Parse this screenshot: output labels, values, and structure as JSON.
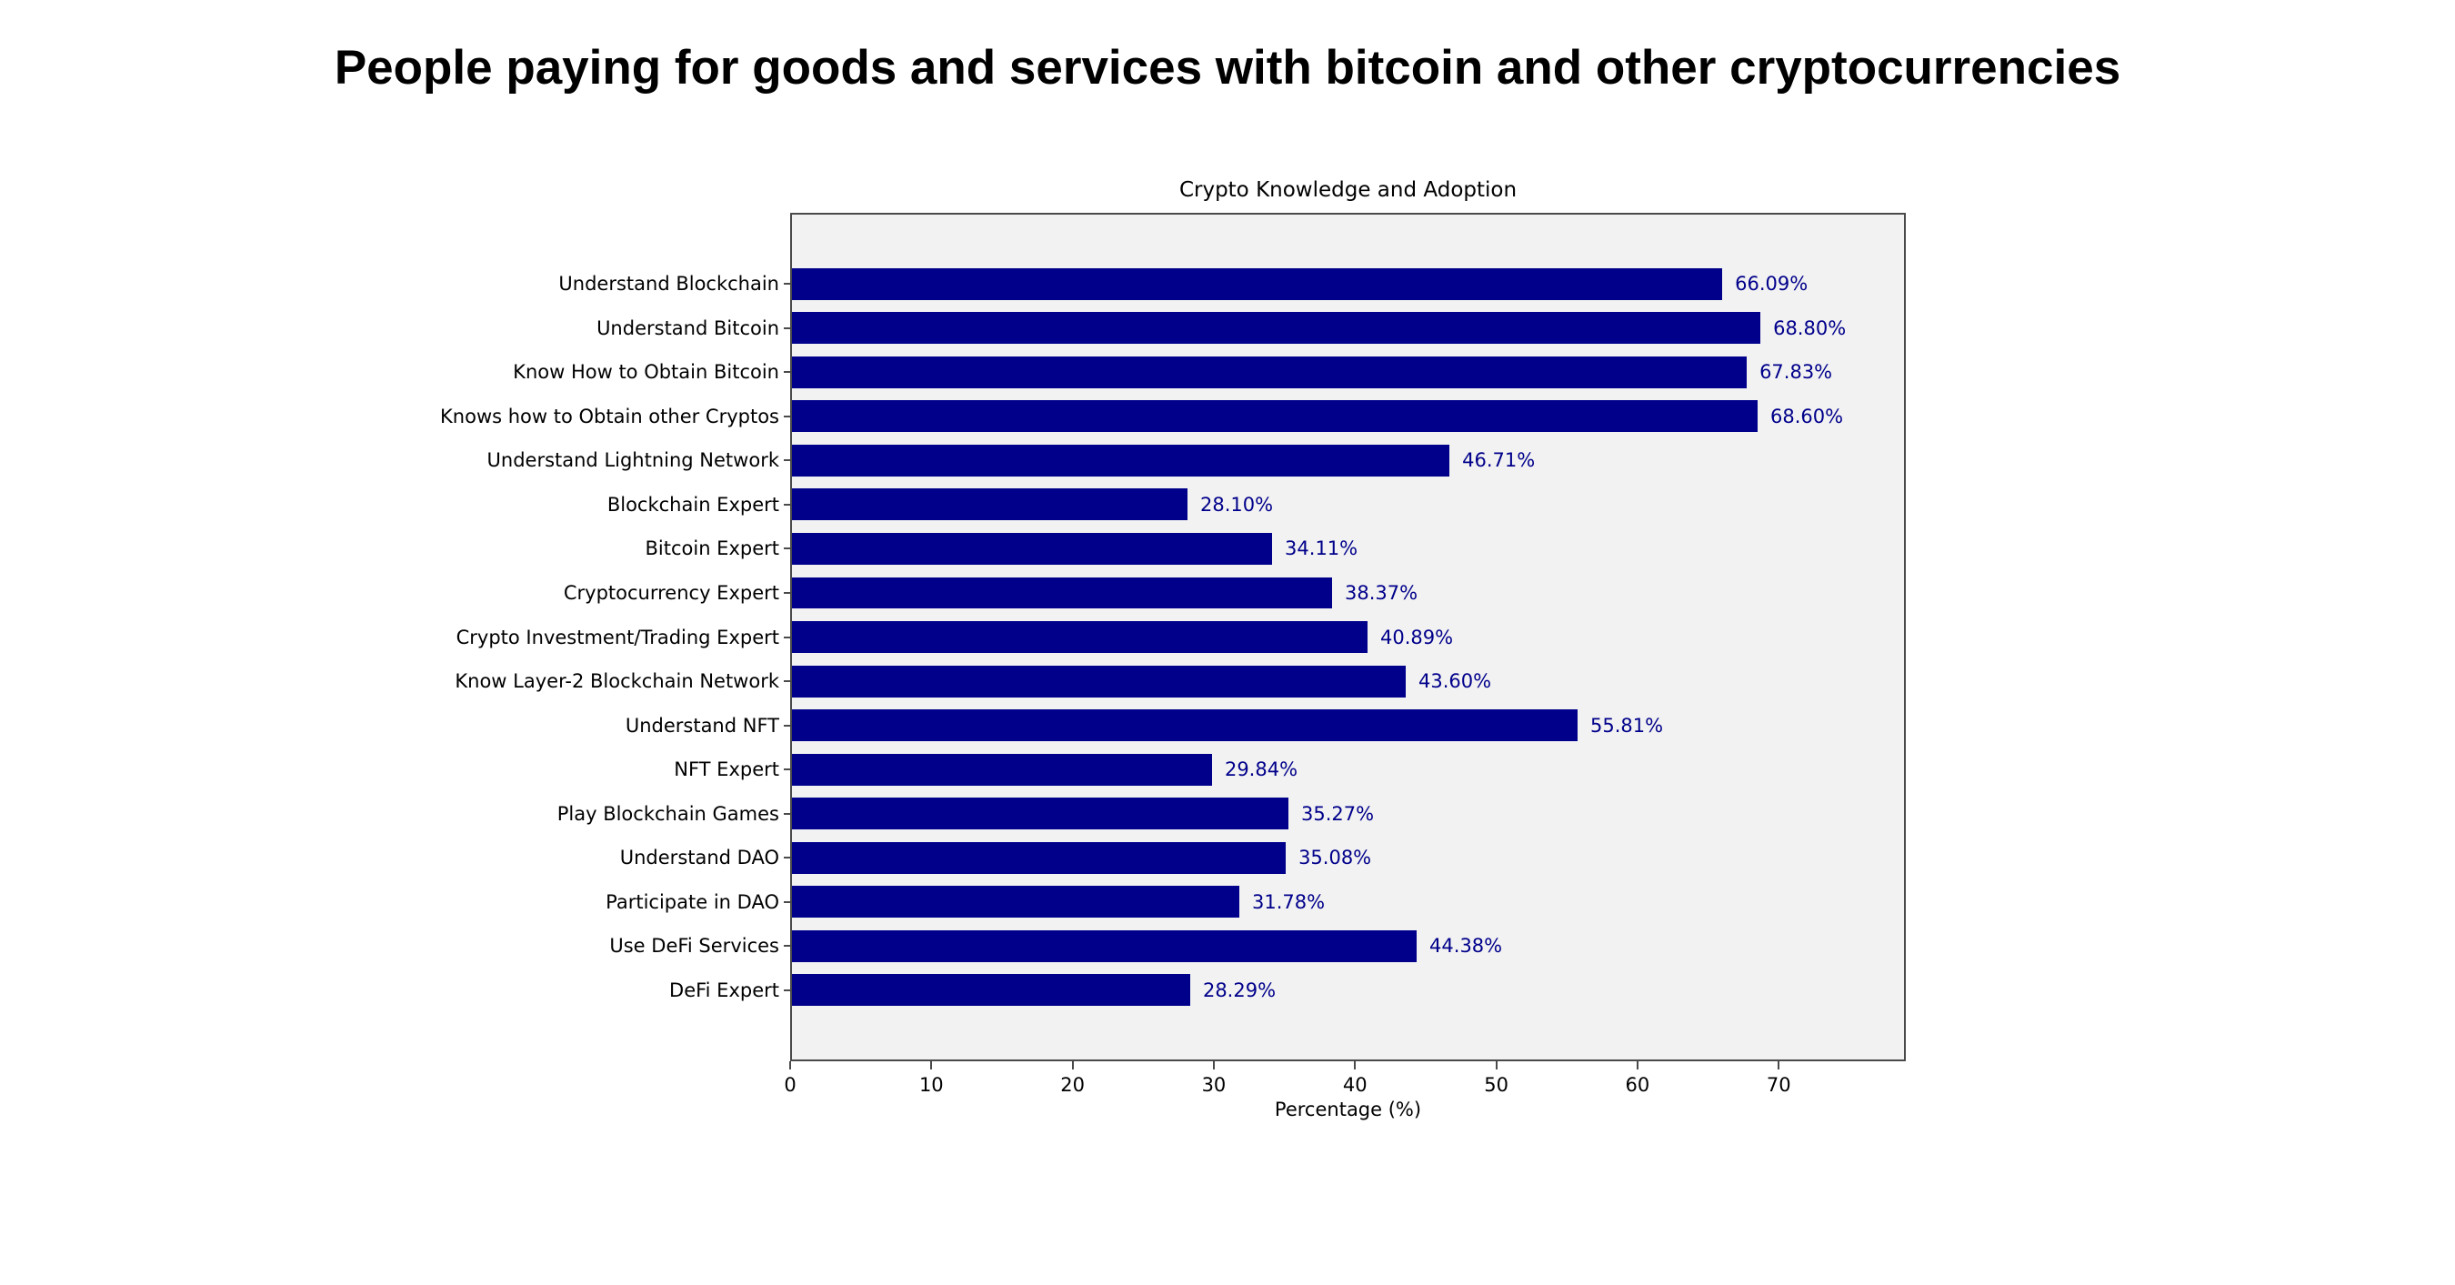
{
  "page": {
    "title": "People paying for goods and services with bitcoin and other cryptocurrencies"
  },
  "chart_data": {
    "type": "bar",
    "orientation": "horizontal",
    "title": "Crypto Knowledge and Adoption",
    "xlabel": "Percentage (%)",
    "categories": [
      "Understand Blockchain",
      "Understand Bitcoin",
      "Know How to Obtain Bitcoin",
      "Knows how to Obtain other Cryptos",
      "Understand Lightning Network",
      "Blockchain Expert",
      "Bitcoin Expert",
      "Cryptocurrency Expert",
      "Crypto Investment/Trading Expert",
      "Know Layer-2 Blockchain Network",
      "Understand NFT",
      "NFT Expert",
      "Play Blockchain Games",
      "Understand DAO",
      "Participate in DAO",
      "Use DeFi Services",
      "DeFi Expert"
    ],
    "values": [
      66.09,
      68.8,
      67.83,
      68.6,
      46.71,
      28.1,
      34.11,
      38.37,
      40.89,
      43.6,
      55.81,
      29.84,
      35.27,
      35.08,
      31.78,
      44.38,
      28.29
    ],
    "value_labels": [
      "66.09%",
      "68.80%",
      "67.83%",
      "68.60%",
      "46.71%",
      "28.10%",
      "34.11%",
      "38.37%",
      "40.89%",
      "43.60%",
      "55.81%",
      "29.84%",
      "35.27%",
      "35.08%",
      "31.78%",
      "44.38%",
      "28.29%"
    ],
    "xlim": [
      0,
      79
    ],
    "xticks": [
      0,
      10,
      20,
      30,
      40,
      50,
      60,
      70
    ],
    "bar_color": "#00008B",
    "value_label_color": "#00008B",
    "plot_background": "#f2f2f2",
    "grid": false,
    "legend": null
  }
}
